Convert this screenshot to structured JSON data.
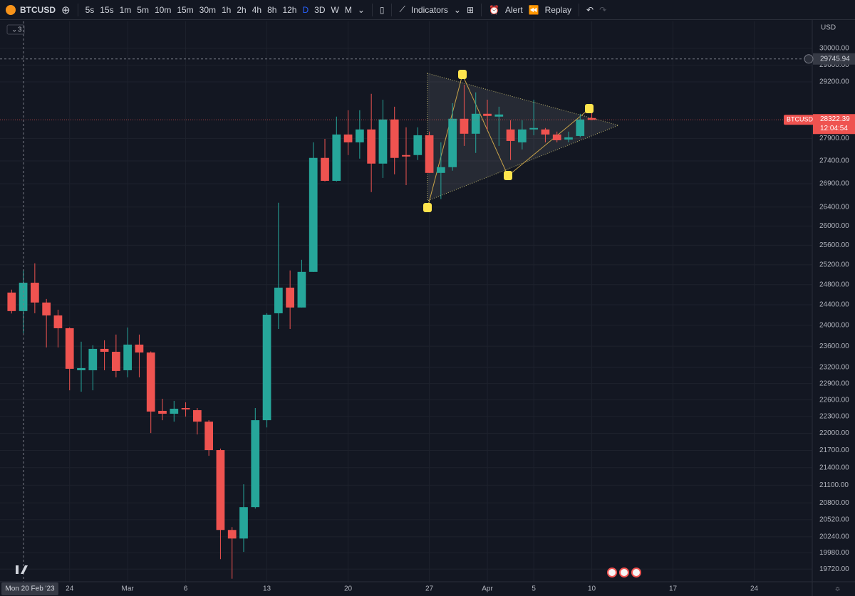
{
  "toolbar": {
    "symbol": "BTCUSD",
    "intervals": [
      "5s",
      "15s",
      "1m",
      "5m",
      "10m",
      "15m",
      "30m",
      "1h",
      "2h",
      "4h",
      "8h",
      "12h",
      "D",
      "3D",
      "W",
      "M"
    ],
    "indicators": "Indicators",
    "alert": "Alert",
    "replay": "Replay"
  },
  "chart_data": {
    "type": "candlestick",
    "symbol_tag": "BTCUSD",
    "currency": "USD",
    "legend_count": "3",
    "countdown": "12:04:54",
    "crosshair": {
      "price": 29745.94,
      "date": "Mon 20 Feb '23"
    },
    "up_color": "#26a69a",
    "down_color": "#ef5350",
    "grid": true,
    "log_scale": true,
    "open": [
      24642,
      24277,
      24838,
      24445,
      24192,
      23944,
      23147,
      23147,
      23549,
      23494,
      23147,
      23630,
      23480,
      22402,
      22350,
      22453,
      22414,
      22208,
      21705,
      20352,
      20212,
      20730,
      22234,
      24234,
      24740,
      24347,
      25056,
      27466,
      26963,
      27989,
      27812,
      28103,
      27340,
      28330,
      27529,
      27529,
      27972,
      27136,
      27262,
      28346,
      28006,
      28460,
      28395,
      28103,
      27812,
      28103,
      28103,
      27989,
      27876,
      27956,
      28362
    ],
    "high": [
      24700,
      25085,
      25229,
      24515,
      24304,
      23960,
      23685,
      23617,
      23712,
      23822,
      23958,
      23822,
      23500,
      22621,
      22582,
      22556,
      22453,
      22234,
      21730,
      20399,
      21115,
      22453,
      24234,
      26491,
      25085,
      25301,
      27812,
      27891,
      28395,
      28541,
      28541,
      28922,
      28784,
      28622,
      28151,
      28151,
      28054,
      27812,
      28703,
      29135,
      28956,
      28784,
      28622,
      28313,
      28313,
      28784,
      28136,
      28054,
      28054,
      28460,
      28492
    ],
    "low": [
      24230,
      23850,
      24234,
      23576,
      23576,
      22776,
      22750,
      22776,
      23147,
      23015,
      23015,
      23015,
      22005,
      22234,
      22208,
      22298,
      21980,
      21605,
      19879,
      19568,
      19994,
      20706,
      22105,
      23930,
      23930,
      24347,
      25056,
      26950,
      26950,
      27529,
      27450,
      26720,
      27026,
      27105,
      26870,
      27419,
      27136,
      26570,
      27184,
      27733,
      27576,
      28087,
      27733,
      27419,
      27654,
      27972,
      27812,
      27812,
      27812,
      27924,
      28313
    ],
    "close": [
      24277,
      24838,
      24445,
      24192,
      23944,
      23174,
      23187,
      23549,
      23494,
      23134,
      23630,
      23480,
      22389,
      22350,
      22440,
      22427,
      22208,
      21705,
      20352,
      20212,
      20730,
      22234,
      24206,
      24740,
      24347,
      25056,
      27466,
      26963,
      27989,
      27812,
      28103,
      27340,
      28330,
      27466,
      27497,
      27972,
      27136,
      27262,
      28346,
      28006,
      28460,
      28411,
      28444,
      27844,
      28103,
      28136,
      27989,
      27860,
      27924,
      28330,
      28322.39
    ],
    "xlim": [
      -1,
      69
    ],
    "xticks": [
      {
        "value": 5,
        "label": "24"
      },
      {
        "value": 10,
        "label": "Mar"
      },
      {
        "value": 15,
        "label": "6"
      },
      {
        "value": 22,
        "label": "13"
      },
      {
        "value": 29,
        "label": "20"
      },
      {
        "value": 36,
        "label": "27"
      },
      {
        "value": 41,
        "label": "Apr"
      },
      {
        "value": 45,
        "label": "5"
      },
      {
        "value": 50,
        "label": "10"
      },
      {
        "value": 57,
        "label": "17"
      },
      {
        "value": 64,
        "label": "24"
      }
    ],
    "ylim": [
      19520,
      30660
    ],
    "yticks": [
      {
        "value": 30000,
        "label": "30000.00"
      },
      {
        "value": 29600,
        "label": "29600.00"
      },
      {
        "value": 29200,
        "label": "29200.00"
      },
      {
        "value": 27900,
        "label": "27900.00"
      },
      {
        "value": 27400,
        "label": "27400.00"
      },
      {
        "value": 26900,
        "label": "26900.00"
      },
      {
        "value": 26400,
        "label": "26400.00"
      },
      {
        "value": 26000,
        "label": "26000.00"
      },
      {
        "value": 25600,
        "label": "25600.00"
      },
      {
        "value": 25200,
        "label": "25200.00"
      },
      {
        "value": 24800,
        "label": "24800.00"
      },
      {
        "value": 24400,
        "label": "24400.00"
      },
      {
        "value": 24000,
        "label": "24000.00"
      },
      {
        "value": 23600,
        "label": "23600.00"
      },
      {
        "value": 23200,
        "label": "23200.00"
      },
      {
        "value": 22900,
        "label": "22900.00"
      },
      {
        "value": 22600,
        "label": "22600.00"
      },
      {
        "value": 22300,
        "label": "22300.00"
      },
      {
        "value": 22000,
        "label": "22000.00"
      },
      {
        "value": 21700,
        "label": "21700.00"
      },
      {
        "value": 21400,
        "label": "21400.00"
      },
      {
        "value": 21100,
        "label": "21100.00"
      },
      {
        "value": 20800,
        "label": "20800.00"
      },
      {
        "value": 20520,
        "label": "20520.00"
      },
      {
        "value": 20240,
        "label": "20240.00"
      },
      {
        "value": 19980,
        "label": "19980.00"
      },
      {
        "value": 19720,
        "label": "19720.00"
      }
    ]
  }
}
